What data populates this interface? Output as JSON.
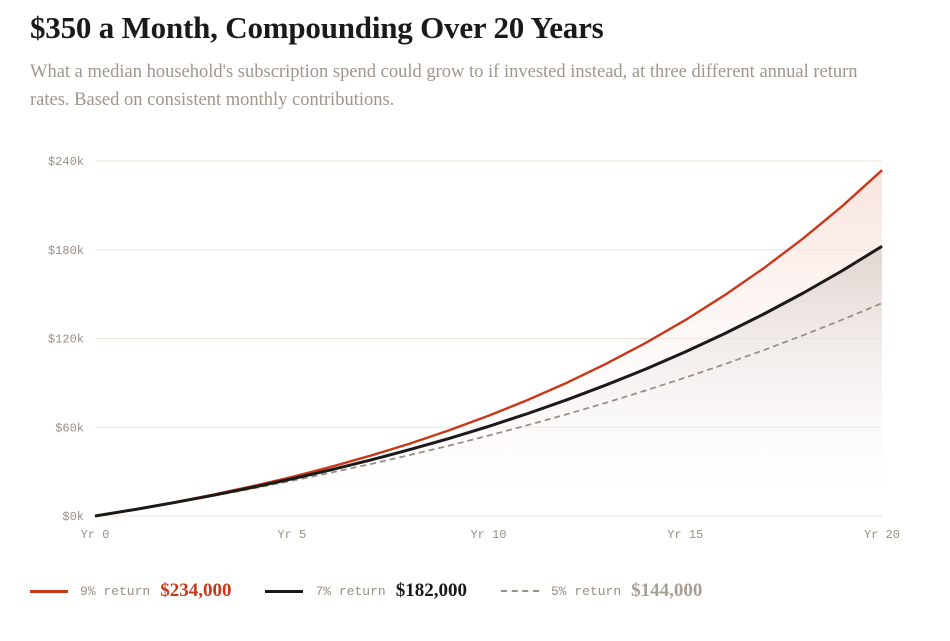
{
  "header": {
    "title": "$350 a Month, Compounding Over 20 Years",
    "subtitle": "What a median household's subscription spend could grow to if invested instead, at three different annual return rates. Based on consistent monthly contributions."
  },
  "chart_data": {
    "type": "line",
    "x": [
      0,
      1,
      2,
      3,
      4,
      5,
      6,
      7,
      8,
      9,
      10,
      11,
      12,
      13,
      14,
      15,
      16,
      17,
      18,
      19,
      20
    ],
    "xticks": [
      0,
      5,
      10,
      15,
      20
    ],
    "xtick_labels": [
      "Yr 0",
      "Yr 5",
      "Yr 10",
      "Yr 15",
      "Yr 20"
    ],
    "yticks": [
      0,
      60000,
      120000,
      180000,
      240000
    ],
    "ytick_labels": [
      "$0k",
      "$60k",
      "$120k",
      "$180k",
      "$240k"
    ],
    "xlim": [
      0,
      20
    ],
    "ylim": [
      0,
      240000
    ],
    "grid": "horizontal",
    "legend_position": "bottom",
    "series": [
      {
        "name": "9% return",
        "final_label": "$234,000",
        "color": "#c8391a",
        "style": "solid",
        "values": [
          0,
          4378,
          9165,
          14401,
          20132,
          26399,
          33255,
          40749,
          48949,
          57918,
          67732,
          78461,
          90197,
          103040,
          117082,
          132440,
          149240,
          167617,
          187721,
          209706,
          233763
        ]
      },
      {
        "name": "7% return",
        "final_label": "$182,000",
        "color": "#1c1a18",
        "style": "solid",
        "values": [
          0,
          4337,
          8989,
          13976,
          19324,
          25058,
          31207,
          37800,
          44870,
          52451,
          60580,
          69296,
          78643,
          88666,
          99413,
          110936,
          123293,
          136544,
          150752,
          165987,
          182324
        ]
      },
      {
        "name": "5% return",
        "final_label": "$144,000",
        "color": "#9a8f84",
        "style": "dashed",
        "values": [
          0,
          4297,
          8815,
          13563,
          18555,
          23802,
          29318,
          35115,
          41210,
          47615,
          54349,
          61428,
          68868,
          76689,
          84911,
          93552,
          102636,
          112185,
          122223,
          132774,
          143865
        ]
      }
    ]
  }
}
